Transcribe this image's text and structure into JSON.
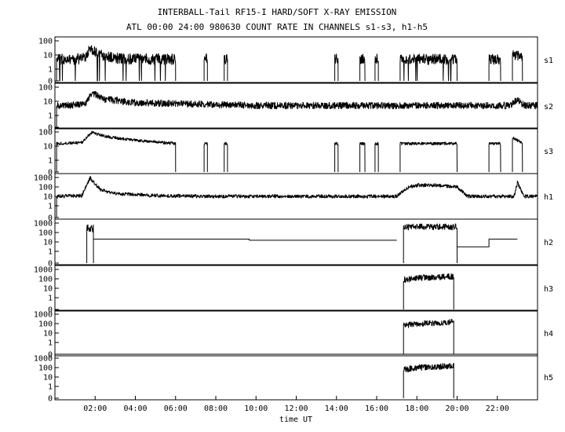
{
  "chart_data": {
    "type": "line",
    "title": "INTERBALL-Tail RF15-I HARD/SOFT X-RAY EMISSION",
    "subtitle": "ATL 00:00 24:00 980630  COUNT RATE IN CHANNELS s1-s3, h1-h5",
    "xlabel": "time UT",
    "xlim": [
      "00:00",
      "24:00"
    ],
    "x_ticks": [
      "02:00",
      "04:00",
      "06:00",
      "08:00",
      "10:00",
      "12:00",
      "14:00",
      "16:00",
      "18:00",
      "20:00",
      "22:00"
    ],
    "y_scale": "log",
    "grid": false,
    "panels": [
      {
        "name": "s1",
        "ylim": [
          0,
          100
        ],
        "y_ticks": [
          "100",
          "10",
          "1",
          "0"
        ],
        "segments": [
          {
            "x": [
              "00:05",
              "01:00",
              "01:30",
              "01:45",
              "02:00",
              "02:30",
              "03:00",
              "04:00",
              "05:00",
              "06:00"
            ],
            "y": [
              5,
              5,
              6,
              40,
              15,
              8,
              6,
              5,
              5,
              5
            ],
            "noise": 2.5,
            "dropouts": 0.03
          },
          {
            "x": [
              "07:25",
              "07:35"
            ],
            "y": [
              5,
              5
            ],
            "noise": 2.5
          },
          {
            "x": [
              "08:25",
              "08:35"
            ],
            "y": [
              5,
              5
            ],
            "noise": 2.5
          },
          {
            "x": [
              "13:55",
              "14:05"
            ],
            "y": [
              5,
              5
            ],
            "noise": 2.5
          },
          {
            "x": [
              "15:10",
              "15:25"
            ],
            "y": [
              5,
              5
            ],
            "noise": 2.5
          },
          {
            "x": [
              "15:55",
              "16:05"
            ],
            "y": [
              5,
              5
            ],
            "noise": 2.5
          },
          {
            "x": [
              "17:10",
              "20:00"
            ],
            "y": [
              5,
              5
            ],
            "noise": 2.5,
            "dropouts": 0.03
          },
          {
            "x": [
              "21:35",
              "22:10"
            ],
            "y": [
              5,
              5
            ],
            "noise": 2.5
          },
          {
            "x": [
              "22:45",
              "23:15"
            ],
            "y": [
              10,
              8
            ],
            "noise": 2.5
          }
        ]
      },
      {
        "name": "s2",
        "ylim": [
          0,
          100
        ],
        "y_ticks": [
          "100",
          "10",
          "1",
          "0"
        ],
        "segments": [
          {
            "x": [
              "00:05",
              "01:30",
              "01:50",
              "02:30",
              "04:00",
              "06:00",
              "10:00",
              "15:00",
              "20:00",
              "22:40",
              "23:00",
              "23:20",
              "24:00"
            ],
            "y": [
              5,
              6,
              40,
              14,
              8,
              7,
              5,
              5,
              5,
              5,
              14,
              5,
              5
            ],
            "noise": 1.8
          }
        ]
      },
      {
        "name": "s3",
        "ylim": [
          0,
          100
        ],
        "y_ticks": [
          "100",
          "10",
          "1",
          "0"
        ],
        "segments": [
          {
            "x": [
              "00:05",
              "01:20",
              "01:50",
              "02:30",
              "03:30",
              "05:00",
              "06:00"
            ],
            "y": [
              15,
              18,
              90,
              50,
              30,
              20,
              15
            ],
            "noise": 1.3
          },
          {
            "x": [
              "07:25",
              "07:35"
            ],
            "y": [
              15,
              15
            ],
            "noise": 1.3
          },
          {
            "x": [
              "08:25",
              "08:35"
            ],
            "y": [
              15,
              15
            ],
            "noise": 1.3
          },
          {
            "x": [
              "13:55",
              "14:05"
            ],
            "y": [
              15,
              15
            ],
            "noise": 1.3
          },
          {
            "x": [
              "15:10",
              "15:25"
            ],
            "y": [
              15,
              15
            ],
            "noise": 1.3
          },
          {
            "x": [
              "15:55",
              "16:05"
            ],
            "y": [
              15,
              15
            ],
            "noise": 1.3
          },
          {
            "x": [
              "17:10",
              "20:00"
            ],
            "y": [
              15,
              15
            ],
            "noise": 1.3
          },
          {
            "x": [
              "21:35",
              "22:10"
            ],
            "y": [
              15,
              15
            ],
            "noise": 1.3
          },
          {
            "x": [
              "22:45",
              "23:00",
              "23:15"
            ],
            "y": [
              40,
              25,
              15
            ],
            "noise": 1.3
          }
        ]
      },
      {
        "name": "h1",
        "ylim": [
          0,
          1000
        ],
        "y_ticks": [
          "1000",
          "100",
          "10",
          "1",
          "0"
        ],
        "segments": [
          {
            "x": [
              "00:05",
              "01:20",
              "01:45",
              "02:15",
              "03:00",
              "05:00",
              "08:00",
              "12:00",
              "17:00",
              "17:30",
              "18:00",
              "19:00",
              "20:00",
              "20:30",
              "22:50",
              "23:00",
              "23:20",
              "24:00"
            ],
            "y": [
              10,
              12,
              900,
              50,
              20,
              12,
              10,
              10,
              10,
              80,
              150,
              150,
              100,
              10,
              10,
              300,
              10,
              10
            ],
            "noise": 1.6
          }
        ]
      },
      {
        "name": "h2",
        "ylim": [
          0,
          1000
        ],
        "y_ticks": [
          "1000",
          "100",
          "10",
          "1",
          "0"
        ],
        "segments": [
          {
            "x": [
              "01:35",
              "01:55"
            ],
            "y": [
              300,
              300
            ],
            "noise": 3
          },
          {
            "x": [
              "01:55",
              "09:40",
              "09:40",
              "17:00"
            ],
            "y": [
              20,
              20,
              15,
              15
            ]
          },
          {
            "x": [
              "17:20",
              "20:00"
            ],
            "y": [
              400,
              400
            ],
            "noise": 2.2
          },
          {
            "x": [
              "20:00",
              "21:35",
              "21:35",
              "23:00"
            ],
            "y": [
              3,
              3,
              20,
              20
            ]
          }
        ]
      },
      {
        "name": "h3",
        "ylim": [
          0,
          1000
        ],
        "y_ticks": [
          "1000",
          "100",
          "10",
          "1",
          "0"
        ],
        "segments": [
          {
            "x": [
              "17:20",
              "18:00",
              "19:00",
              "19:50"
            ],
            "y": [
              80,
              120,
              150,
              180
            ],
            "noise": 2.2
          }
        ]
      },
      {
        "name": "h4",
        "ylim": [
          0,
          1000
        ],
        "y_ticks": [
          "1000",
          "100",
          "10",
          "1",
          "0"
        ],
        "segments": [
          {
            "x": [
              "17:20",
              "18:00",
              "19:00",
              "19:50"
            ],
            "y": [
              60,
              100,
              120,
              150
            ],
            "noise": 2.2
          }
        ]
      },
      {
        "name": "h5",
        "ylim": [
          0,
          1000
        ],
        "y_ticks": [
          "1000",
          "100",
          "10",
          "1",
          "0"
        ],
        "segments": [
          {
            "x": [
              "17:20",
              "18:00",
              "19:00",
              "19:50"
            ],
            "y": [
              60,
              100,
              120,
              150
            ],
            "noise": 2.2
          }
        ]
      }
    ]
  }
}
